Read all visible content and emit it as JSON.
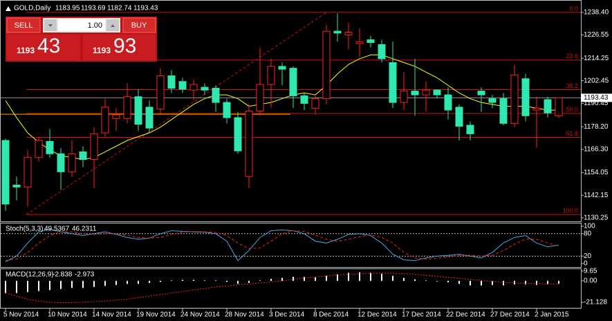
{
  "trade_panel": {
    "sell": "SELL",
    "buy": "BUY",
    "lot": "1.00",
    "sell_price_small": "1193",
    "sell_price_big": "43",
    "buy_price_small": "1193",
    "buy_price_big": "93"
  },
  "chart_data": [
    {
      "type": "candlestick",
      "symbol": "GOLD,Daily",
      "categories": [
        "5 Nov 2014",
        null,
        null,
        null,
        "10 Nov 2014",
        null,
        null,
        null,
        "14 Nov 2014",
        null,
        null,
        null,
        "19 Nov 2014",
        null,
        null,
        null,
        "24 Nov 2014",
        null,
        null,
        null,
        "28 Nov 2014",
        null,
        null,
        null,
        "3 Dec 2014",
        null,
        null,
        null,
        "8 Dec 2014",
        null,
        null,
        null,
        "12 Dec 2014",
        null,
        null,
        null,
        "17 Dec 2014",
        null,
        null,
        null,
        "22 Dec 2014",
        null,
        null,
        null,
        "27 Dec 2014",
        null,
        null,
        null,
        "2 Jan 2015",
        null,
        null
      ],
      "open": [
        1171,
        1147.5,
        1146.5,
        1162,
        1170.5,
        1164,
        1154.5,
        1165,
        1161,
        1175,
        1182.5,
        1182.5,
        1194,
        1188.5,
        1187.5,
        1205,
        1202,
        1197.5,
        1199,
        1198.5,
        1191,
        1183,
        1152,
        1186.5,
        1200.5,
        1210,
        1209,
        1194.5,
        1188,
        1193,
        1228.5,
        1226.5,
        1222,
        1224,
        1221.5,
        1212,
        1191,
        1197,
        1195,
        1197.5,
        1195,
        1188.5,
        1179,
        1197,
        1193,
        1193,
        1180,
        1203.5,
        1187,
        1192.5,
        1183.95
      ],
      "high": [
        1172,
        1152,
        1166,
        1173,
        1177,
        1167,
        1171,
        1168,
        1178,
        1193,
        1188,
        1201,
        1198,
        1192,
        1209,
        1208,
        1204,
        1203,
        1201,
        1200,
        1193,
        1186,
        1190,
        1220,
        1214,
        1212,
        1210,
        1196,
        1195,
        1232,
        1238,
        1233,
        1230,
        1226,
        1224,
        1223,
        1207,
        1214,
        1202,
        1198,
        1199,
        1190,
        1181,
        1199,
        1195,
        1196,
        1211,
        1206,
        1194,
        1194,
        1193.69
      ],
      "low": [
        1134,
        1139.5,
        1136,
        1160,
        1162,
        1145,
        1152,
        1157,
        1146,
        1173,
        1176,
        1180,
        1176,
        1175,
        1185,
        1196,
        1196,
        1192,
        1195,
        1186,
        1180,
        1164,
        1146,
        1184,
        1188,
        1200,
        1188,
        1187,
        1185,
        1190,
        1223,
        1219,
        1215,
        1220,
        1212,
        1188,
        1187,
        1184,
        1186,
        1193,
        1182,
        1171,
        1171,
        1186,
        1188,
        1179,
        1178,
        1181,
        1167,
        1183,
        1182.74
      ],
      "close": [
        1137.5,
        1146.5,
        1162,
        1171,
        1164,
        1154.5,
        1164,
        1161,
        1174.5,
        1188.5,
        1184.5,
        1194,
        1179.5,
        1177.5,
        1205,
        1198.5,
        1198,
        1200.5,
        1197.5,
        1191,
        1183,
        1165.5,
        1186.5,
        1200.5,
        1210,
        1208.5,
        1194.5,
        1190.5,
        1193,
        1228.5,
        1227.5,
        1228,
        1223,
        1222.5,
        1214,
        1191,
        1197,
        1195,
        1197.5,
        1195,
        1187,
        1178.5,
        1174.5,
        1195,
        1191,
        1180,
        1205.5,
        1184,
        1188,
        1185.5,
        1193.43
      ],
      "up_color": "#ff2020",
      "down_color": "#2ee8b0",
      "overlays": [
        {
          "color": "#ffff00",
          "values": [
            1192,
            1183,
            1175,
            1170,
            1166,
            1163,
            1162,
            1161,
            1162,
            1165,
            1168,
            1171,
            1173,
            1175,
            1178,
            1182,
            1186,
            1190,
            1193,
            1195,
            1195,
            1193,
            1189,
            1190,
            1191,
            1193,
            1195,
            1196,
            1195,
            1200,
            1206,
            1211,
            1214,
            1216,
            1216,
            1214,
            1212,
            1210,
            1207,
            1204,
            1200,
            1196,
            1193,
            1191,
            1190,
            1189,
            1189,
            1189,
            1188,
            1187,
            1187
          ]
        }
      ],
      "fib": {
        "high": 1238.4,
        "low": 1132,
        "color": "#d01010",
        "levels": [
          {
            "value": 0,
            "label": "0.0"
          },
          23.6,
          38.2,
          {
            "value": 50,
            "label": "50.0"
          },
          61.8,
          {
            "value": 100,
            "label": "100.0"
          }
        ]
      },
      "horizontal_line": {
        "value": 1184.8,
        "color": "#ffa500"
      },
      "bid_line_color": "#909090",
      "ylim": [
        1128.4,
        1243.1
      ],
      "yticks": [
        {
          "value": 1238.4,
          "label": "1238.40"
        },
        1226.55,
        1214.25,
        1202.45,
        1190.45,
        {
          "value": 1178.2,
          "label": "1178.20"
        },
        {
          "value": 1166.3,
          "label": "1166.30"
        },
        1154.05,
        1142.15,
        1130.25
      ]
    },
    {
      "type": "stochastic",
      "title": "Stoch(5,3,3)",
      "series": [
        {
          "color": "#4aa8e0",
          "values": [
            5,
            20,
            55,
            85,
            92,
            85,
            80,
            75,
            80,
            85,
            78,
            70,
            65,
            68,
            80,
            88,
            86,
            85,
            84,
            80,
            60,
            8,
            35,
            70,
            88,
            90,
            88,
            80,
            60,
            55,
            65,
            78,
            80,
            75,
            55,
            25,
            10,
            8,
            15,
            20,
            22,
            25,
            20,
            15,
            30,
            55,
            70,
            75,
            55,
            45,
            49.5367
          ]
        },
        {
          "color": "#ff2020",
          "dash": true,
          "values": [
            8,
            12,
            30,
            55,
            75,
            85,
            85,
            80,
            78,
            80,
            80,
            76,
            70,
            68,
            70,
            78,
            84,
            86,
            85,
            83,
            75,
            55,
            40,
            42,
            60,
            80,
            88,
            86,
            76,
            65,
            60,
            65,
            72,
            77,
            70,
            55,
            30,
            15,
            12,
            14,
            18,
            22,
            22,
            20,
            22,
            35,
            52,
            66,
            65,
            55,
            46.2311
          ]
        }
      ],
      "levels": [
        80,
        20
      ],
      "ylim": [
        -7.4,
        107.4
      ],
      "yticks": [
        100,
        80,
        20,
        0
      ]
    },
    {
      "type": "macd",
      "title": "MACD(12,26,9)",
      "series": [
        {
          "color": "#ffffff",
          "values": [
            -12,
            -12,
            -11,
            -10,
            -9,
            -8,
            -7,
            -7,
            -6,
            -5,
            -4,
            -3,
            -3,
            -2,
            -1,
            0.5,
            1,
            1,
            0.5,
            0.5,
            -1,
            -3,
            -2,
            0.5,
            2,
            3,
            4,
            4,
            3.5,
            5,
            6.5,
            8,
            8.5,
            8,
            7,
            5,
            3,
            1.5,
            0.5,
            -0.5,
            -1.5,
            -3,
            -4.5,
            -4.5,
            -4,
            -4.5,
            -3.5,
            -3.5,
            -4,
            -3.5,
            -2.838
          ]
        },
        {
          "color": "#ff2020",
          "values": [
            -12,
            -15,
            -18,
            -20,
            -21,
            -21.5,
            -21.5,
            -21,
            -20.5,
            -20,
            -19,
            -18,
            -16.5,
            -15,
            -13.5,
            -12,
            -10.5,
            -9,
            -7.5,
            -6,
            -5,
            -4,
            -3,
            -2,
            -1,
            0,
            1.5,
            3,
            4,
            5,
            6,
            6.5,
            7,
            7.5,
            7.5,
            7.5,
            7,
            6.5,
            5.5,
            4.5,
            3.5,
            2.5,
            1.5,
            0.5,
            -0.5,
            -1.5,
            -2,
            -2.5,
            -2.8,
            -2.9,
            -2.973
          ]
        }
      ],
      "ylim": [
        -26.6,
        11.6
      ],
      "yticks": [
        9.65,
        {
          "value": 0,
          "label": "0.00"
        },
        -21.128
      ]
    }
  ]
}
